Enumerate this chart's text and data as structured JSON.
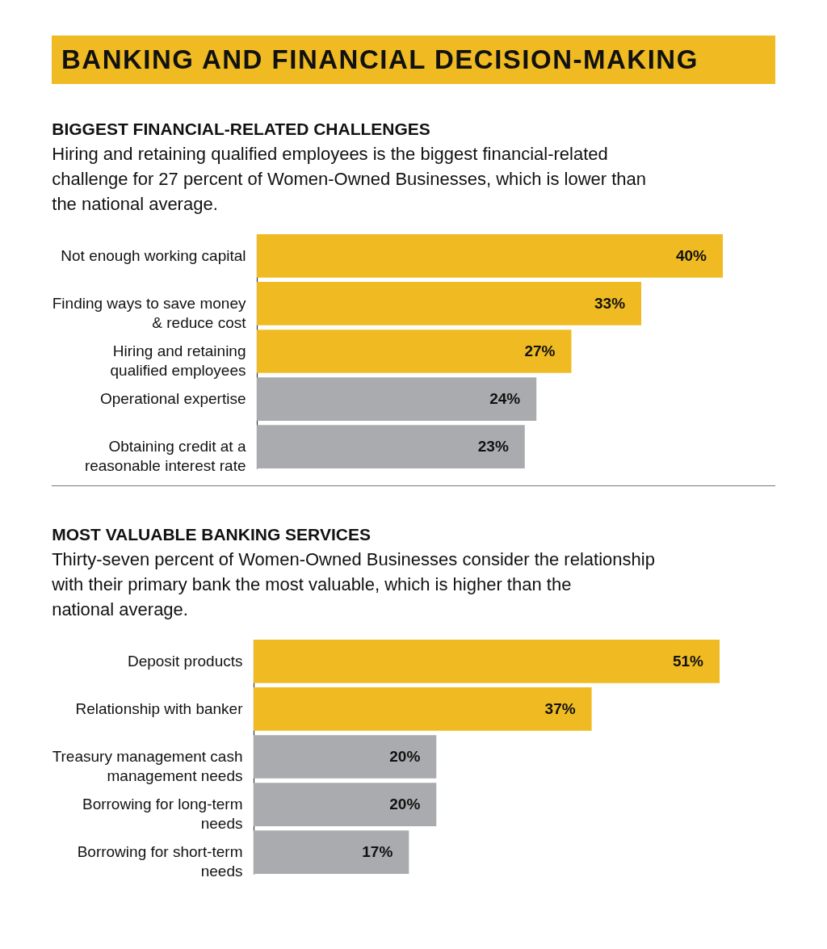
{
  "chart_data": [
    {
      "type": "other",
      "title": "BANKING AND FINANCIAL DECISION-MAKING"
    },
    {
      "type": "bar",
      "orientation": "horizontal",
      "title": "BIGGEST FINANCIAL-RELATED CHALLENGES",
      "subtitle": "Hiring and retaining qualified employees is the biggest financial-related challenge for 27 percent of Women-Owned Businesses, which is lower than the national average.",
      "categories": [
        "Not enough working capital",
        "Finding ways to save money & reduce cost",
        "Hiring and retaining qualified employees",
        "Operational expertise",
        "Obtaining credit at a reasonable interest rate"
      ],
      "values": [
        40,
        33,
        27,
        24,
        23
      ],
      "colors": [
        "#f0bb22",
        "#f0bb22",
        "#f0bb22",
        "#a9abae",
        "#a9abae"
      ],
      "value_labels": [
        "40%",
        "33%",
        "27%",
        "24%",
        "23%"
      ],
      "tick_labels": "y"
    },
    {
      "type": "bar",
      "orientation": "horizontal",
      "title": "MOST VALUABLE BANKING SERVICES",
      "subtitle": "Thirty-seven percent of Women-Owned Businesses consider the relationship with their primary bank the most valuable, which is higher than the national average.",
      "categories": [
        "Deposit products",
        "Relationship with banker",
        "Treasury management cash management needs",
        "Borrowing for long-term needs",
        "Borrowing for short-term needs"
      ],
      "values": [
        51,
        37,
        20,
        20,
        17
      ],
      "colors": [
        "#f0bb22",
        "#f0bb22",
        "#a9abae",
        "#a9abae",
        "#a9abae"
      ],
      "value_labels": [
        "51%",
        "37%",
        "20%",
        "20%",
        "17%"
      ],
      "tick_labels": "y"
    }
  ]
}
